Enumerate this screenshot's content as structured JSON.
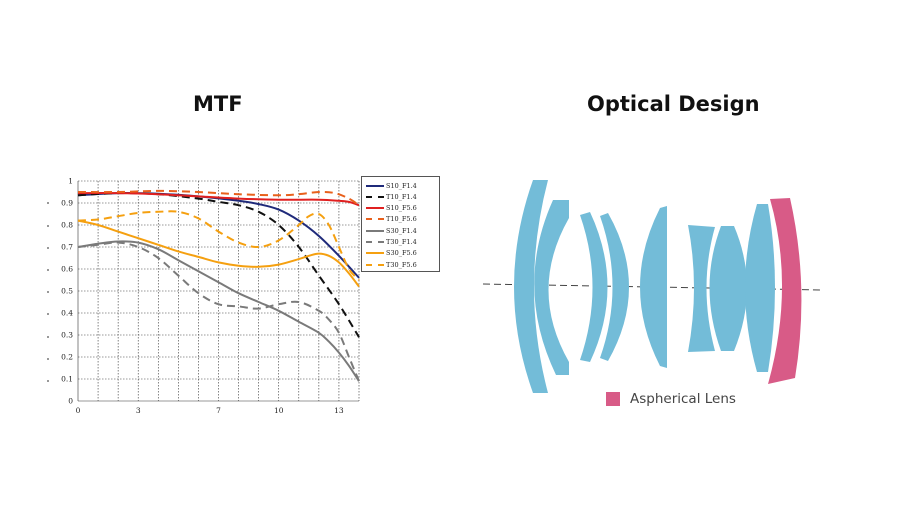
{
  "titles": {
    "mtf": "MTF",
    "optical": "Optical Design"
  },
  "chart_data": {
    "type": "line",
    "title": "MTF",
    "xlabel": "",
    "ylabel": "",
    "xlim": [
      0,
      14
    ],
    "ylim": [
      0,
      1
    ],
    "x_ticks": [
      0,
      3,
      7,
      10,
      13
    ],
    "x_tick_labels": [
      "0",
      "3",
      "7",
      "10",
      "13"
    ],
    "y_ticks": [
      0.1,
      0.2,
      0.3,
      0.4,
      0.5,
      0.6,
      0.7,
      0.8,
      0.9,
      1
    ],
    "y_tick_labels": [
      "0.1",
      "0.2",
      "0.3",
      "0.4",
      "0.5",
      "0.6",
      "0.7",
      "0.8",
      "0.9",
      "1"
    ],
    "grid": true,
    "legend_position": "top-right",
    "series": [
      {
        "name": "S10_F1.4",
        "color": "#1f2a7a",
        "dash": false,
        "x": [
          0,
          2,
          4,
          6,
          8,
          9,
          10,
          11,
          12,
          13,
          14
        ],
        "y": [
          0.935,
          0.945,
          0.942,
          0.93,
          0.91,
          0.895,
          0.87,
          0.82,
          0.75,
          0.66,
          0.56
        ]
      },
      {
        "name": "T10_F1.4",
        "color": "#111111",
        "dash": true,
        "x": [
          0,
          2,
          4,
          6,
          7,
          8,
          9,
          10,
          11,
          12,
          13,
          14
        ],
        "y": [
          0.935,
          0.945,
          0.94,
          0.92,
          0.905,
          0.89,
          0.86,
          0.8,
          0.7,
          0.57,
          0.44,
          0.29
        ]
      },
      {
        "name": "S10_F5.6",
        "color": "#e02020",
        "dash": false,
        "x": [
          0,
          2,
          4,
          6,
          8,
          10,
          12,
          13,
          13.5,
          14
        ],
        "y": [
          0.945,
          0.945,
          0.94,
          0.93,
          0.92,
          0.915,
          0.915,
          0.91,
          0.905,
          0.89
        ]
      },
      {
        "name": "T10_F5.6",
        "color": "#e8601c",
        "dash": true,
        "x": [
          0,
          2,
          4,
          6,
          8,
          10,
          11,
          12,
          12.8,
          13.5,
          14
        ],
        "y": [
          0.95,
          0.95,
          0.955,
          0.95,
          0.94,
          0.935,
          0.94,
          0.95,
          0.945,
          0.92,
          0.89
        ]
      },
      {
        "name": "S30_F1.4",
        "color": "#7a7a7a",
        "dash": false,
        "x": [
          0,
          1,
          2,
          3,
          4,
          5,
          6,
          7,
          8,
          9,
          10,
          11,
          12,
          12.5,
          13,
          13.5,
          14
        ],
        "y": [
          0.7,
          0.715,
          0.725,
          0.72,
          0.69,
          0.64,
          0.59,
          0.54,
          0.49,
          0.45,
          0.41,
          0.36,
          0.31,
          0.27,
          0.22,
          0.16,
          0.09
        ]
      },
      {
        "name": "T30_F1.4",
        "color": "#7a7a7a",
        "dash": true,
        "x": [
          0,
          1,
          2,
          3,
          4,
          5,
          6,
          7,
          8,
          9,
          10,
          11,
          12,
          12.5,
          13,
          13.5,
          14
        ],
        "y": [
          0.7,
          0.71,
          0.72,
          0.7,
          0.65,
          0.57,
          0.49,
          0.44,
          0.43,
          0.42,
          0.44,
          0.45,
          0.41,
          0.37,
          0.31,
          0.2,
          0.09
        ]
      },
      {
        "name": "S30_F5.6",
        "color": "#f5a010",
        "dash": false,
        "x": [
          0,
          1,
          2,
          3,
          4,
          5,
          6,
          7,
          8,
          9,
          10,
          11,
          11.5,
          12,
          12.5,
          13,
          13.5,
          14
        ],
        "y": [
          0.82,
          0.8,
          0.77,
          0.74,
          0.71,
          0.68,
          0.655,
          0.63,
          0.615,
          0.61,
          0.62,
          0.645,
          0.66,
          0.67,
          0.66,
          0.63,
          0.58,
          0.52
        ]
      },
      {
        "name": "T30_F5.6",
        "color": "#f5a010",
        "dash": true,
        "x": [
          0,
          1,
          2,
          3,
          4,
          5,
          6,
          7,
          8,
          9,
          10,
          11,
          11.5,
          12,
          12.5,
          13,
          13.5,
          14
        ],
        "y": [
          0.82,
          0.825,
          0.84,
          0.855,
          0.86,
          0.86,
          0.83,
          0.77,
          0.72,
          0.7,
          0.73,
          0.8,
          0.84,
          0.85,
          0.8,
          0.7,
          0.6,
          0.55
        ]
      }
    ]
  },
  "optical_legend": {
    "label": "Aspherical Lens",
    "color": "#d85b87"
  },
  "lens_colors": {
    "spherical": "#73bcd8",
    "aspherical": "#d85b87",
    "axis": "#444444"
  }
}
